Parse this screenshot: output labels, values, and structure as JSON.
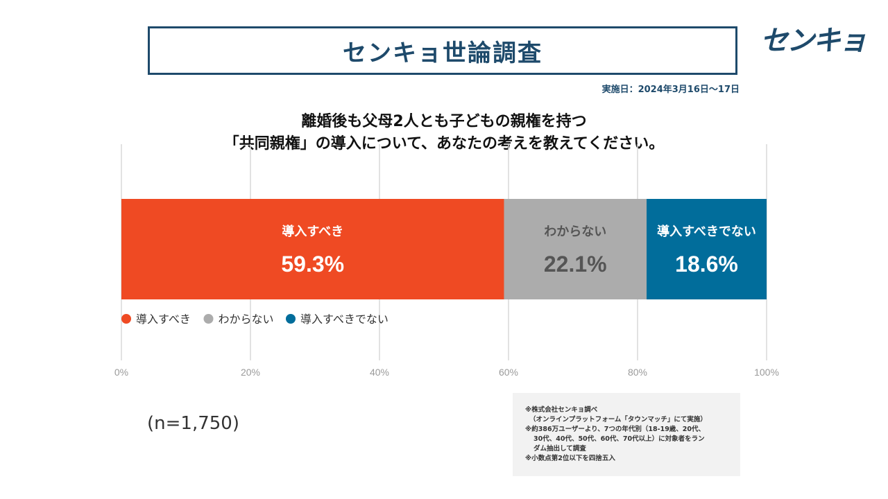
{
  "header": {
    "title": "センキョ世論調査",
    "logo_text": "センキョ",
    "date": "実施日：2024年3月16日～17日"
  },
  "question": {
    "line1": "離婚後も父母2人とも子どもの親権を持つ",
    "line2": "「共同親権」の導入について、あなたの考えを教えてください。"
  },
  "chart_data": {
    "type": "bar",
    "orientation": "horizontal-stacked-100",
    "categories": [
      "導入すべき",
      "わからない",
      "導入すべきでない"
    ],
    "series": [
      {
        "name": "導入すべき",
        "value": 59.3,
        "label": "59.3%",
        "color": "#ef4a23",
        "text_color": "#ffffff"
      },
      {
        "name": "わからない",
        "value": 22.1,
        "label": "22.1%",
        "color": "#acacac",
        "text_color": "#555555"
      },
      {
        "name": "導入すべきでない",
        "value": 18.6,
        "label": "18.6%",
        "color": "#016d9b",
        "text_color": "#ffffff"
      }
    ],
    "xticks": [
      "0%",
      "20%",
      "40%",
      "60%",
      "80%",
      "100%"
    ],
    "xlim": [
      0,
      100
    ],
    "grid": true,
    "legend_position": "below-bar-left"
  },
  "sample_size": "(n=1,750)",
  "notes": [
    "※株式会社センキョ調べ",
    "（オンラインプラットフォーム「タウンマッチ」にて実施）",
    "※約386万ユーザーより、7つの年代別（18-19歳、20代、",
    "30代、40代、50代、60代、70代以上）に対象者をラン",
    "ダム抽出して調査",
    "※小数点第2位以下を四捨五入"
  ]
}
